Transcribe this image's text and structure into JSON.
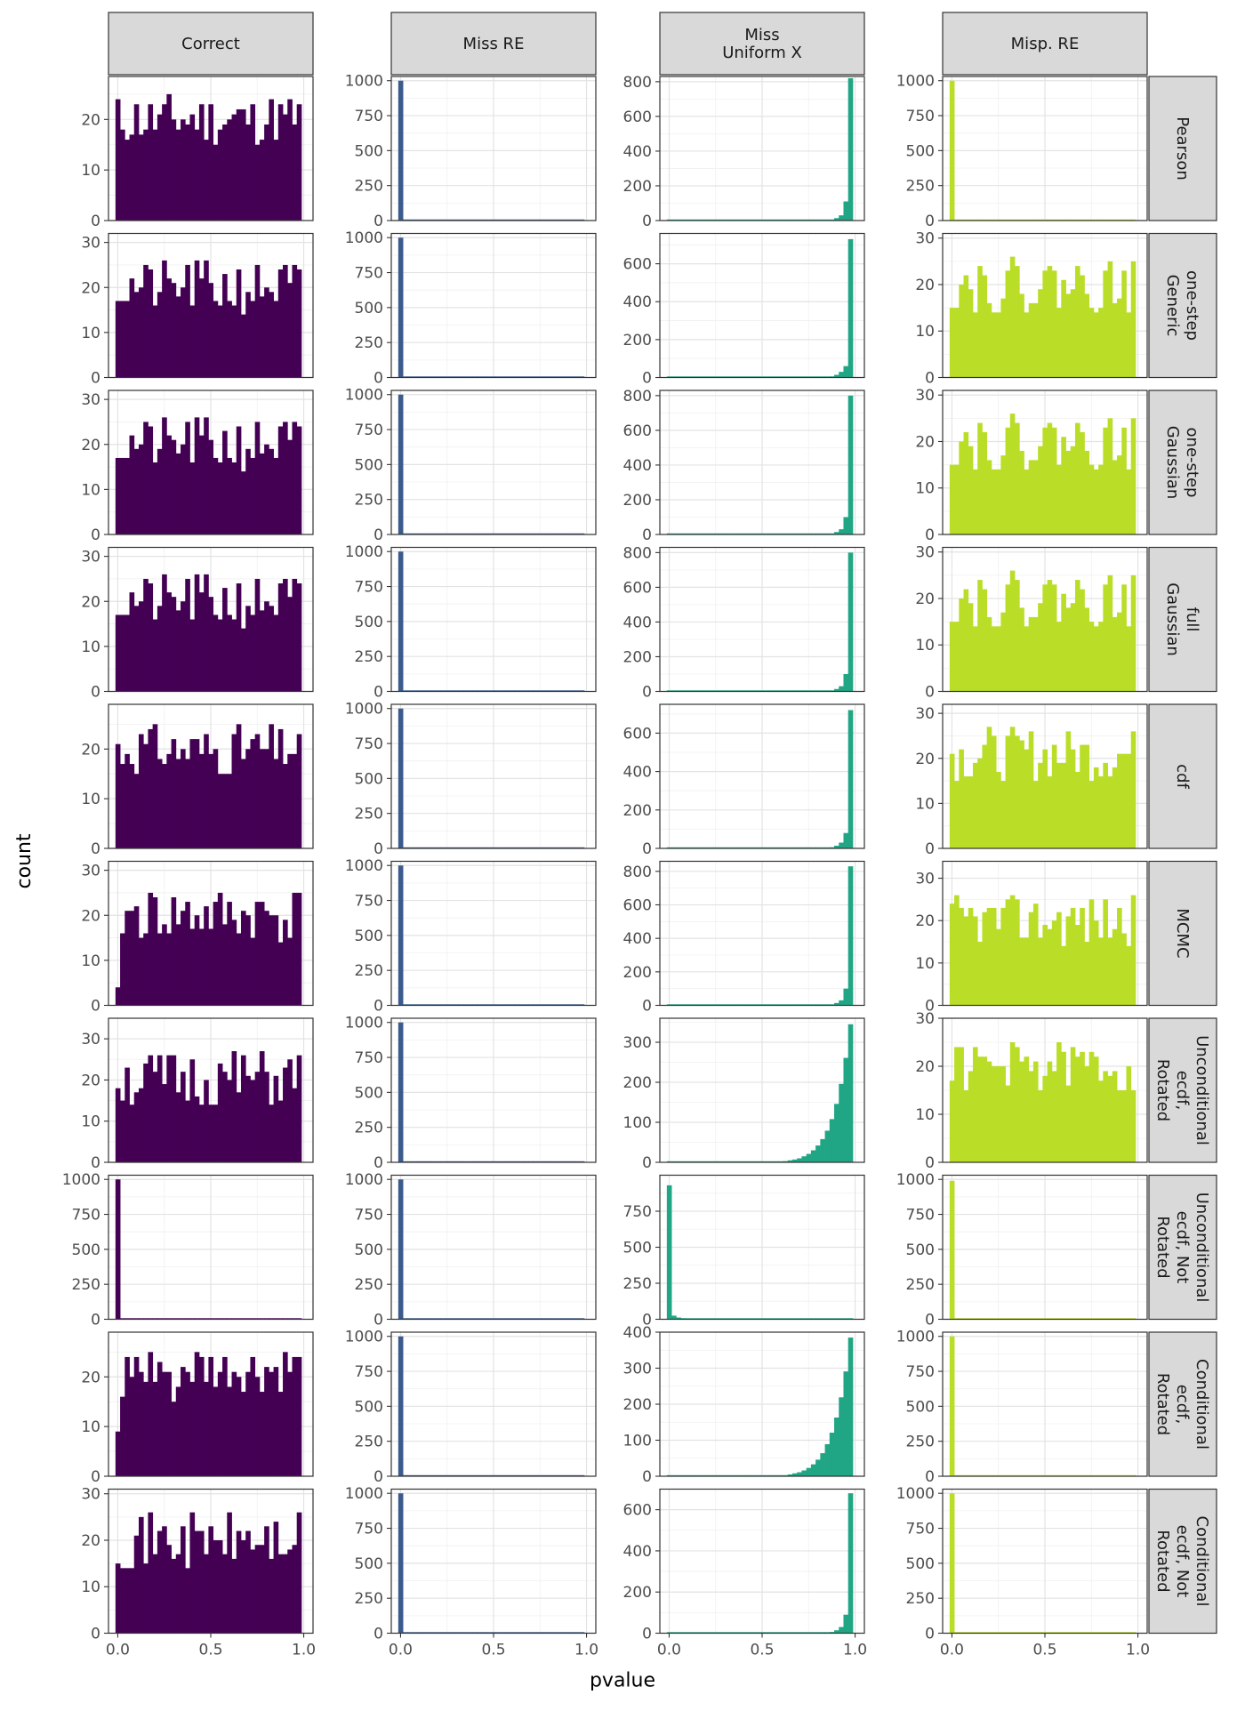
{
  "chart_data": {
    "type": "bar",
    "chart_kind": "faceted histogram",
    "xlabel": "pvalue",
    "ylabel": "count",
    "x_ticks": [
      "0.0",
      "0.5",
      "1.0"
    ],
    "grid": true,
    "legend": "none",
    "columns": [
      {
        "label": "Correct",
        "color": "#440154"
      },
      {
        "label": "Miss RE",
        "color": "#3B5B8C"
      },
      {
        "label": "Miss\nUniform X",
        "color": "#21A685"
      },
      {
        "label": "Misp. RE",
        "color": "#BADE28"
      }
    ],
    "rows": [
      {
        "label": "Pearson",
        "panels": [
          {
            "ylim": [
              0,
              28.5
            ],
            "y_ticks": [
              0,
              10,
              20
            ],
            "profile": "uniform",
            "base": 20,
            "amp": 5,
            "seed": 11
          },
          {
            "ylim": [
              0,
              1030
            ],
            "y_ticks": [
              0,
              250,
              500,
              750,
              1000
            ],
            "profile": "spike_low",
            "peak": 1000
          },
          {
            "ylim": [
              0,
              830
            ],
            "y_ticks": [
              0,
              200,
              400,
              600,
              800
            ],
            "profile": "spike_high",
            "peak": 820,
            "second": 110
          },
          {
            "ylim": [
              0,
              1030
            ],
            "y_ticks": [
              0,
              250,
              500,
              750,
              1000
            ],
            "profile": "spike_low",
            "peak": 1000
          }
        ]
      },
      {
        "label": "one-step\nGeneric",
        "panels": [
          {
            "ylim": [
              0,
              32
            ],
            "y_ticks": [
              0,
              10,
              20,
              30
            ],
            "profile": "uniform",
            "base": 20,
            "amp": 6,
            "seed": 21
          },
          {
            "ylim": [
              0,
              1030
            ],
            "y_ticks": [
              0,
              250,
              500,
              750,
              1000
            ],
            "profile": "spike_low",
            "peak": 1000
          },
          {
            "ylim": [
              0,
              760
            ],
            "y_ticks": [
              0,
              200,
              400,
              600
            ],
            "profile": "spike_high",
            "peak": 730,
            "second": 60
          },
          {
            "ylim": [
              0,
              31
            ],
            "y_ticks": [
              0,
              10,
              20,
              30
            ],
            "profile": "uniform",
            "base": 20,
            "amp": 6,
            "seed": 22
          }
        ]
      },
      {
        "label": "one-step\nGaussian",
        "panels": [
          {
            "ylim": [
              0,
              32
            ],
            "y_ticks": [
              0,
              10,
              20,
              30
            ],
            "profile": "uniform",
            "base": 20,
            "amp": 6,
            "seed": 21
          },
          {
            "ylim": [
              0,
              1030
            ],
            "y_ticks": [
              0,
              250,
              500,
              750,
              1000
            ],
            "profile": "spike_low",
            "peak": 1000
          },
          {
            "ylim": [
              0,
              830
            ],
            "y_ticks": [
              0,
              200,
              400,
              600,
              800
            ],
            "profile": "spike_high",
            "peak": 800,
            "second": 100
          },
          {
            "ylim": [
              0,
              31
            ],
            "y_ticks": [
              0,
              10,
              20,
              30
            ],
            "profile": "uniform",
            "base": 20,
            "amp": 6,
            "seed": 22
          }
        ]
      },
      {
        "label": "full\nGaussian",
        "panels": [
          {
            "ylim": [
              0,
              32
            ],
            "y_ticks": [
              0,
              10,
              20,
              30
            ],
            "profile": "uniform",
            "base": 20,
            "amp": 6,
            "seed": 21
          },
          {
            "ylim": [
              0,
              1030
            ],
            "y_ticks": [
              0,
              250,
              500,
              750,
              1000
            ],
            "profile": "spike_low",
            "peak": 1000
          },
          {
            "ylim": [
              0,
              830
            ],
            "y_ticks": [
              0,
              200,
              400,
              600,
              800
            ],
            "profile": "spike_high",
            "peak": 800,
            "second": 100
          },
          {
            "ylim": [
              0,
              31
            ],
            "y_ticks": [
              0,
              10,
              20,
              30
            ],
            "profile": "uniform",
            "base": 20,
            "amp": 6,
            "seed": 22
          }
        ]
      },
      {
        "label": "cdf",
        "panels": [
          {
            "ylim": [
              0,
              29
            ],
            "y_ticks": [
              0,
              10,
              20
            ],
            "profile": "uniform",
            "base": 20,
            "amp": 5,
            "seed": 31
          },
          {
            "ylim": [
              0,
              1030
            ],
            "y_ticks": [
              0,
              250,
              500,
              750,
              1000
            ],
            "profile": "spike_low",
            "peak": 1000
          },
          {
            "ylim": [
              0,
              750
            ],
            "y_ticks": [
              0,
              200,
              400,
              600
            ],
            "profile": "spike_high",
            "peak": 720,
            "second": 80
          },
          {
            "ylim": [
              0,
              32
            ],
            "y_ticks": [
              0,
              10,
              20,
              30
            ],
            "profile": "uniform",
            "base": 21,
            "amp": 6,
            "seed": 32
          }
        ]
      },
      {
        "label": "MCMC",
        "panels": [
          {
            "ylim": [
              0,
              32
            ],
            "y_ticks": [
              0,
              10,
              20,
              30
            ],
            "profile": "uniform",
            "base": 20,
            "amp": 6,
            "seed": 41,
            "first": 4
          },
          {
            "ylim": [
              0,
              1030
            ],
            "y_ticks": [
              0,
              250,
              500,
              750,
              1000
            ],
            "profile": "spike_low",
            "peak": 1000
          },
          {
            "ylim": [
              0,
              860
            ],
            "y_ticks": [
              0,
              200,
              400,
              600,
              800
            ],
            "profile": "spike_high",
            "peak": 830,
            "second": 100
          },
          {
            "ylim": [
              0,
              34
            ],
            "y_ticks": [
              0,
              10,
              20,
              30
            ],
            "profile": "uniform",
            "base": 20,
            "amp": 6,
            "seed": 42
          }
        ]
      },
      {
        "label": "Unconditional\necdf,\nRotated",
        "panels": [
          {
            "ylim": [
              0,
              35
            ],
            "y_ticks": [
              0,
              10,
              20,
              30
            ],
            "profile": "uniform",
            "base": 20,
            "amp": 7,
            "seed": 51
          },
          {
            "ylim": [
              0,
              1030
            ],
            "y_ticks": [
              0,
              250,
              500,
              750,
              1000
            ],
            "profile": "spike_low",
            "peak": 1000
          },
          {
            "ylim": [
              0,
              360
            ],
            "y_ticks": [
              0,
              100,
              200,
              300
            ],
            "profile": "exp_high",
            "peak": 345
          },
          {
            "ylim": [
              0,
              30
            ],
            "y_ticks": [
              0,
              10,
              20,
              30
            ],
            "profile": "uniform",
            "base": 20,
            "amp": 5,
            "seed": 52
          }
        ]
      },
      {
        "label": "Unconditional\necdf, Not\nRotated",
        "panels": [
          {
            "ylim": [
              0,
              1030
            ],
            "y_ticks": [
              0,
              250,
              500,
              750,
              1000
            ],
            "profile": "spike_low",
            "peak": 1000
          },
          {
            "ylim": [
              0,
              1030
            ],
            "y_ticks": [
              0,
              250,
              500,
              750,
              1000
            ],
            "profile": "spike_low",
            "peak": 1000
          },
          {
            "ylim": [
              0,
              1000
            ],
            "y_ticks": [
              0,
              250,
              500,
              750
            ],
            "profile": "spike_low_tail",
            "peak": 930
          },
          {
            "ylim": [
              0,
              1030
            ],
            "y_ticks": [
              0,
              250,
              500,
              750,
              1000
            ],
            "profile": "spike_low",
            "peak": 990
          }
        ]
      },
      {
        "label": "Conditional\necdf,\nRotated",
        "panels": [
          {
            "ylim": [
              0,
              29
            ],
            "y_ticks": [
              0,
              10,
              20
            ],
            "profile": "uniform",
            "base": 20,
            "amp": 5,
            "seed": 61,
            "first": 9
          },
          {
            "ylim": [
              0,
              1030
            ],
            "y_ticks": [
              0,
              250,
              500,
              750,
              1000
            ],
            "profile": "spike_low",
            "peak": 1000
          },
          {
            "ylim": [
              0,
              400
            ],
            "y_ticks": [
              0,
              100,
              200,
              300,
              400
            ],
            "profile": "exp_high",
            "peak": 385
          },
          {
            "ylim": [
              0,
              1030
            ],
            "y_ticks": [
              0,
              250,
              500,
              750,
              1000
            ],
            "profile": "spike_low",
            "peak": 1000
          }
        ]
      },
      {
        "label": "Conditional\necdf, Not\nRotated",
        "panels": [
          {
            "ylim": [
              0,
              31
            ],
            "y_ticks": [
              0,
              10,
              20,
              30
            ],
            "profile": "uniform",
            "base": 20,
            "amp": 6,
            "seed": 71
          },
          {
            "ylim": [
              0,
              1030
            ],
            "y_ticks": [
              0,
              250,
              500,
              750,
              1000
            ],
            "profile": "spike_low",
            "peak": 1000
          },
          {
            "ylim": [
              0,
              700
            ],
            "y_ticks": [
              0,
              200,
              400,
              600
            ],
            "profile": "spike_high",
            "peak": 680,
            "second": 90
          },
          {
            "ylim": [
              0,
              1030
            ],
            "y_ticks": [
              0,
              250,
              500,
              750,
              1000
            ],
            "profile": "spike_low",
            "peak": 1000
          }
        ]
      }
    ]
  }
}
